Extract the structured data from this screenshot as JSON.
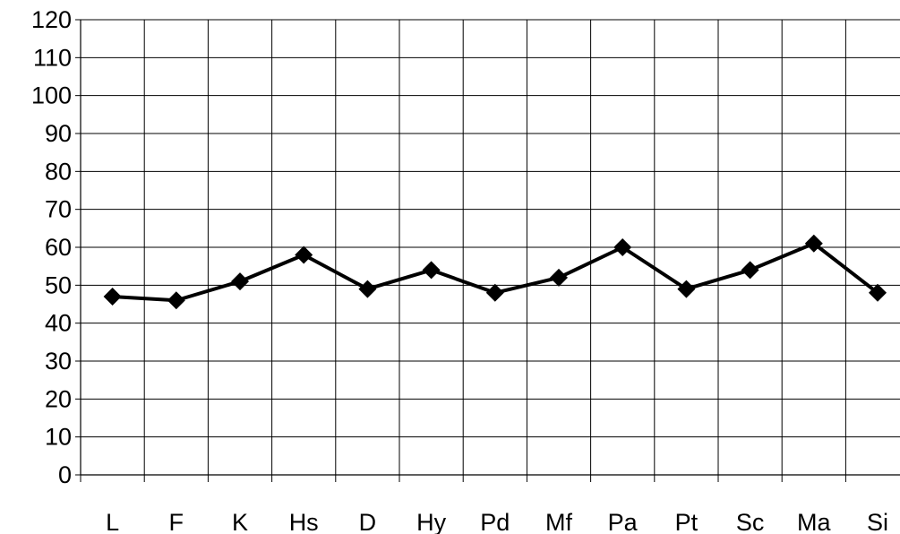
{
  "chart_data": {
    "type": "line",
    "categories": [
      "L",
      "F",
      "K",
      "Hs",
      "D",
      "Hy",
      "Pd",
      "Mf",
      "Pa",
      "Pt",
      "Sc",
      "Ma",
      "Si"
    ],
    "series": [
      {
        "values": [
          47,
          46,
          51,
          58,
          49,
          54,
          48,
          52,
          60,
          49,
          54,
          61,
          48
        ],
        "color": "#000000",
        "marker": "diamond"
      }
    ],
    "ylim": [
      0,
      120
    ],
    "yticks": [
      0,
      10,
      20,
      30,
      40,
      50,
      60,
      70,
      80,
      90,
      100,
      110,
      120
    ],
    "grid": true,
    "legend": "none"
  }
}
